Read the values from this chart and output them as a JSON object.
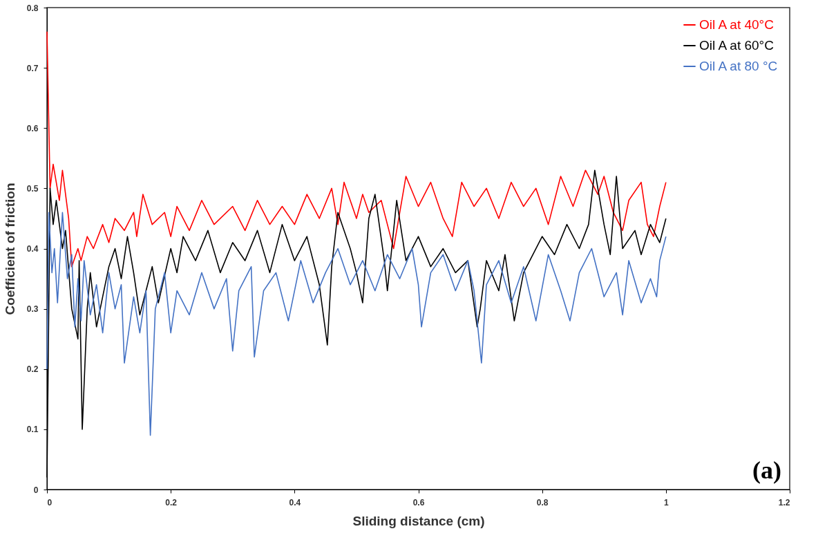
{
  "chart_data": {
    "type": "line",
    "xlabel": "Sliding distance (cm)",
    "ylabel": "Coefficient of friction",
    "xlim": [
      0,
      1.2
    ],
    "xticks": [
      0,
      0.2,
      0.4,
      0.6,
      0.8,
      1,
      1.2
    ],
    "ylim": [
      0,
      0.8
    ],
    "yticks": [
      0,
      0.1,
      0.2,
      0.3,
      0.4,
      0.5,
      0.6,
      0.7,
      0.8
    ],
    "grid": false,
    "legend": "top right",
    "annotations": [
      "(a)"
    ],
    "series": [
      {
        "name": "Oil A at 40°C",
        "color": "#ff0000",
        "x": [
          0,
          0.005,
          0.01,
          0.02,
          0.025,
          0.035,
          0.04,
          0.05,
          0.055,
          0.065,
          0.075,
          0.09,
          0.1,
          0.11,
          0.125,
          0.14,
          0.145,
          0.155,
          0.17,
          0.19,
          0.2,
          0.21,
          0.23,
          0.25,
          0.27,
          0.3,
          0.32,
          0.34,
          0.36,
          0.38,
          0.4,
          0.42,
          0.44,
          0.46,
          0.47,
          0.48,
          0.5,
          0.51,
          0.52,
          0.54,
          0.55,
          0.56,
          0.57,
          0.58,
          0.6,
          0.62,
          0.64,
          0.655,
          0.67,
          0.69,
          0.71,
          0.73,
          0.75,
          0.77,
          0.79,
          0.81,
          0.83,
          0.85,
          0.87,
          0.89,
          0.9,
          0.915,
          0.93,
          0.94,
          0.96,
          0.97,
          0.98,
          0.99,
          1.0
        ],
        "values": [
          0.76,
          0.5,
          0.54,
          0.48,
          0.53,
          0.45,
          0.37,
          0.4,
          0.38,
          0.42,
          0.4,
          0.44,
          0.41,
          0.45,
          0.43,
          0.46,
          0.42,
          0.49,
          0.44,
          0.46,
          0.42,
          0.47,
          0.43,
          0.48,
          0.44,
          0.47,
          0.43,
          0.48,
          0.44,
          0.47,
          0.44,
          0.49,
          0.45,
          0.5,
          0.44,
          0.51,
          0.45,
          0.49,
          0.46,
          0.48,
          0.44,
          0.4,
          0.46,
          0.52,
          0.47,
          0.51,
          0.45,
          0.42,
          0.51,
          0.47,
          0.5,
          0.45,
          0.51,
          0.47,
          0.5,
          0.44,
          0.52,
          0.47,
          0.53,
          0.49,
          0.52,
          0.46,
          0.43,
          0.48,
          0.51,
          0.44,
          0.42,
          0.47,
          0.51
        ]
      },
      {
        "name": "Oil A at 60°C",
        "color": "#000000",
        "x": [
          0,
          0.005,
          0.01,
          0.015,
          0.025,
          0.03,
          0.04,
          0.05,
          0.052,
          0.057,
          0.065,
          0.07,
          0.08,
          0.09,
          0.1,
          0.11,
          0.12,
          0.13,
          0.14,
          0.15,
          0.16,
          0.17,
          0.18,
          0.2,
          0.21,
          0.22,
          0.24,
          0.26,
          0.28,
          0.3,
          0.32,
          0.34,
          0.36,
          0.38,
          0.4,
          0.42,
          0.44,
          0.453,
          0.46,
          0.47,
          0.49,
          0.5,
          0.51,
          0.52,
          0.53,
          0.545,
          0.55,
          0.565,
          0.58,
          0.6,
          0.62,
          0.64,
          0.66,
          0.68,
          0.695,
          0.7,
          0.71,
          0.73,
          0.74,
          0.755,
          0.77,
          0.8,
          0.82,
          0.84,
          0.86,
          0.875,
          0.885,
          0.9,
          0.91,
          0.92,
          0.93,
          0.95,
          0.96,
          0.975,
          0.99,
          1.0
        ],
        "values": [
          0.02,
          0.5,
          0.44,
          0.48,
          0.4,
          0.43,
          0.3,
          0.25,
          0.38,
          0.1,
          0.3,
          0.36,
          0.27,
          0.32,
          0.37,
          0.4,
          0.35,
          0.42,
          0.36,
          0.29,
          0.33,
          0.37,
          0.31,
          0.4,
          0.36,
          0.42,
          0.38,
          0.43,
          0.36,
          0.41,
          0.38,
          0.43,
          0.36,
          0.44,
          0.38,
          0.42,
          0.34,
          0.24,
          0.37,
          0.46,
          0.4,
          0.36,
          0.31,
          0.45,
          0.49,
          0.38,
          0.33,
          0.48,
          0.38,
          0.42,
          0.37,
          0.4,
          0.36,
          0.38,
          0.27,
          0.3,
          0.38,
          0.33,
          0.39,
          0.28,
          0.36,
          0.42,
          0.39,
          0.44,
          0.4,
          0.44,
          0.53,
          0.44,
          0.39,
          0.52,
          0.4,
          0.43,
          0.39,
          0.44,
          0.41,
          0.45
        ]
      },
      {
        "name": "Oil A at 80 °C",
        "color": "#4472c4",
        "x": [
          0,
          0.003,
          0.008,
          0.012,
          0.017,
          0.025,
          0.033,
          0.04,
          0.045,
          0.05,
          0.055,
          0.06,
          0.07,
          0.08,
          0.09,
          0.1,
          0.11,
          0.12,
          0.125,
          0.14,
          0.15,
          0.16,
          0.167,
          0.175,
          0.19,
          0.2,
          0.21,
          0.23,
          0.25,
          0.27,
          0.29,
          0.3,
          0.31,
          0.33,
          0.335,
          0.35,
          0.37,
          0.39,
          0.41,
          0.43,
          0.45,
          0.47,
          0.49,
          0.51,
          0.53,
          0.55,
          0.57,
          0.59,
          0.6,
          0.605,
          0.62,
          0.64,
          0.66,
          0.68,
          0.69,
          0.702,
          0.71,
          0.73,
          0.75,
          0.77,
          0.79,
          0.81,
          0.83,
          0.845,
          0.86,
          0.88,
          0.9,
          0.92,
          0.93,
          0.94,
          0.96,
          0.975,
          0.985,
          0.99,
          1.0
        ],
        "values": [
          0.2,
          0.46,
          0.36,
          0.4,
          0.31,
          0.46,
          0.35,
          0.39,
          0.27,
          0.35,
          0.28,
          0.38,
          0.29,
          0.34,
          0.26,
          0.36,
          0.3,
          0.34,
          0.21,
          0.32,
          0.26,
          0.33,
          0.09,
          0.3,
          0.36,
          0.26,
          0.33,
          0.29,
          0.36,
          0.3,
          0.35,
          0.23,
          0.33,
          0.37,
          0.22,
          0.33,
          0.36,
          0.28,
          0.38,
          0.31,
          0.36,
          0.4,
          0.34,
          0.38,
          0.33,
          0.39,
          0.35,
          0.4,
          0.34,
          0.27,
          0.36,
          0.39,
          0.33,
          0.38,
          0.33,
          0.21,
          0.34,
          0.38,
          0.31,
          0.37,
          0.28,
          0.39,
          0.33,
          0.28,
          0.36,
          0.4,
          0.32,
          0.36,
          0.29,
          0.38,
          0.31,
          0.35,
          0.32,
          0.38,
          0.42
        ]
      }
    ]
  }
}
